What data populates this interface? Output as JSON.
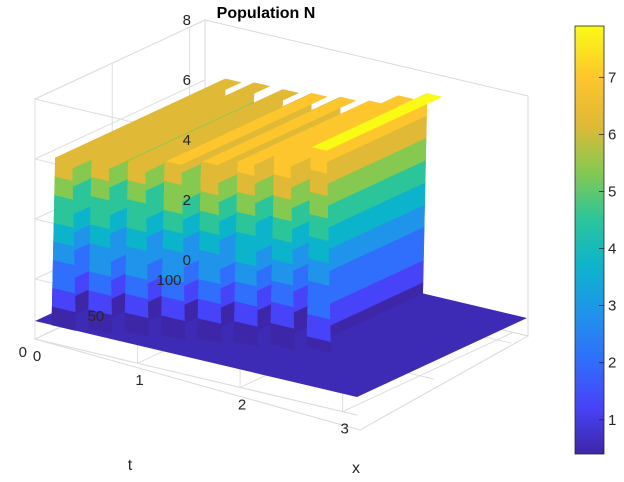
{
  "chart_data": {
    "type": "surface",
    "title": "Population N",
    "xlabel": "x",
    "ylabel": "t",
    "zlabel": "",
    "xlim": [
      0,
      3.14
    ],
    "ylim": [
      0,
      110
    ],
    "zlim": [
      0,
      8
    ],
    "xticks": [
      "0",
      "1",
      "2",
      "3"
    ],
    "yticks": [
      "0",
      "50",
      "100"
    ],
    "zticks": [
      "0",
      "2",
      "4",
      "6",
      "8"
    ],
    "colorbar": {
      "min": 0.4,
      "max": 7.9,
      "ticks": [
        "1",
        "2",
        "3",
        "4",
        "5",
        "6",
        "7"
      ]
    },
    "colormap": [
      "#3e26a8",
      "#4743f8",
      "#2f6ffc",
      "#1f94ea",
      "#0cb4cb",
      "#2cc59a",
      "#86c950",
      "#e0b936",
      "#fdc62c",
      "#f9fb15"
    ],
    "grid": true,
    "ridges": [
      {
        "x": 0.28,
        "t_start": 0.0,
        "peak": 6.2
      },
      {
        "x": 0.56,
        "t_start": 5.0,
        "peak": 6.3
      },
      {
        "x": 0.84,
        "t_start": 10.0,
        "peak": 6.3
      },
      {
        "x": 1.12,
        "t_start": 15.0,
        "peak": 6.4
      },
      {
        "x": 1.4,
        "t_start": 20.0,
        "peak": 6.5
      },
      {
        "x": 1.68,
        "t_start": 25.0,
        "peak": 6.6
      },
      {
        "x": 1.96,
        "t_start": 30.0,
        "peak": 7.0
      },
      {
        "x": 2.24,
        "t_start": 35.0,
        "peak": 7.3
      }
    ],
    "baseline": 0.6
  }
}
